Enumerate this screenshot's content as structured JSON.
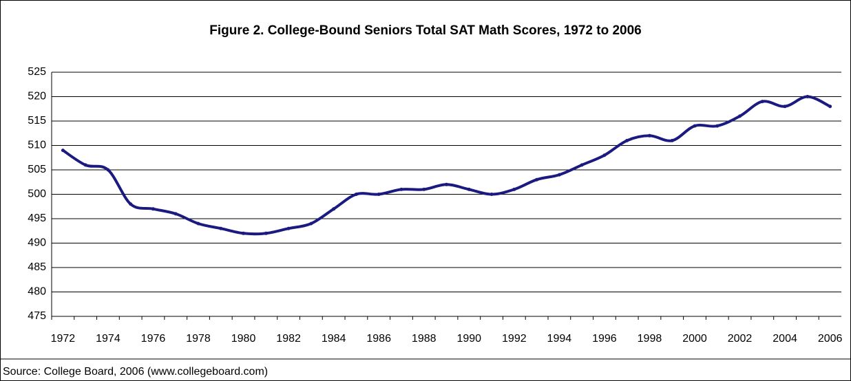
{
  "chart_data": {
    "type": "line",
    "title": "Figure 2. College-Bound Seniors Total SAT Math Scores, 1972 to 2006",
    "source": "Source: College Board, 2006 (www.collegeboard.com)",
    "categories": [
      "1972",
      null,
      "1974",
      null,
      "1976",
      null,
      "1978",
      null,
      "1980",
      null,
      "1982",
      null,
      "1984",
      null,
      "1986",
      null,
      "1988",
      null,
      "1990",
      null,
      "1992",
      null,
      "1994",
      null,
      "1996",
      null,
      "1998",
      null,
      "2000",
      null,
      "2002",
      null,
      "2004",
      null,
      "2006"
    ],
    "series": [
      {
        "name": "SAT Math",
        "color": "#1a1a80",
        "values": [
          509,
          506,
          505,
          498,
          497,
          496,
          494,
          493,
          492,
          492,
          493,
          494,
          497,
          500,
          500,
          501,
          501,
          502,
          501,
          500,
          501,
          503,
          504,
          506,
          508,
          511,
          512,
          511,
          514,
          514,
          516,
          519,
          518,
          520,
          518
        ]
      }
    ],
    "ylim": [
      475,
      525
    ],
    "yticks": [
      475,
      480,
      485,
      490,
      495,
      500,
      505,
      510,
      515,
      520,
      525
    ],
    "grid": true
  }
}
